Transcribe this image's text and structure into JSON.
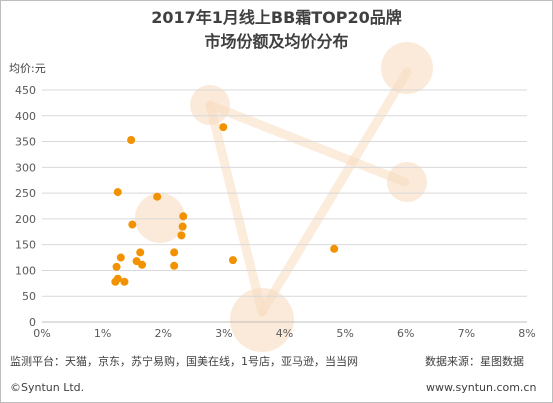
{
  "chart_data": {
    "type": "scatter",
    "title": [
      "2017年1月线上BB霜TOP20品牌",
      "市场份额及均价分布"
    ],
    "ylabel": "均价:元",
    "xlabel": "",
    "xlim": [
      0,
      8
    ],
    "ylim": [
      0,
      450
    ],
    "x_ticks": [
      "0%",
      "1%",
      "2%",
      "3%",
      "4%",
      "5%",
      "6%",
      "7%",
      "8%"
    ],
    "y_ticks": [
      "0",
      "50",
      "100",
      "150",
      "200",
      "250",
      "300",
      "350",
      "400",
      "450"
    ],
    "grid": true,
    "points": [
      {
        "x": 1.47,
        "y": 353
      },
      {
        "x": 2.99,
        "y": 378
      },
      {
        "x": 1.25,
        "y": 252
      },
      {
        "x": 1.9,
        "y": 243
      },
      {
        "x": 2.33,
        "y": 205
      },
      {
        "x": 1.49,
        "y": 189
      },
      {
        "x": 2.32,
        "y": 185
      },
      {
        "x": 2.3,
        "y": 168
      },
      {
        "x": 4.82,
        "y": 142
      },
      {
        "x": 1.62,
        "y": 135
      },
      {
        "x": 2.18,
        "y": 135
      },
      {
        "x": 1.3,
        "y": 125
      },
      {
        "x": 1.56,
        "y": 118
      },
      {
        "x": 3.15,
        "y": 120
      },
      {
        "x": 1.65,
        "y": 111
      },
      {
        "x": 2.18,
        "y": 109
      },
      {
        "x": 1.23,
        "y": 107
      },
      {
        "x": 1.25,
        "y": 84
      },
      {
        "x": 1.36,
        "y": 78
      },
      {
        "x": 1.21,
        "y": 78
      }
    ],
    "point_color": "#f39200",
    "decor_color": "#f8dcc0"
  },
  "footer": {
    "monitor": "监测平台：天猫，京东，苏宁易购，国美在线，1号店，亚马逊，当当网",
    "source": "数据来源：星图数据",
    "copyright": "©Syntun Ltd.",
    "website": "www.syntun.com.cn"
  }
}
